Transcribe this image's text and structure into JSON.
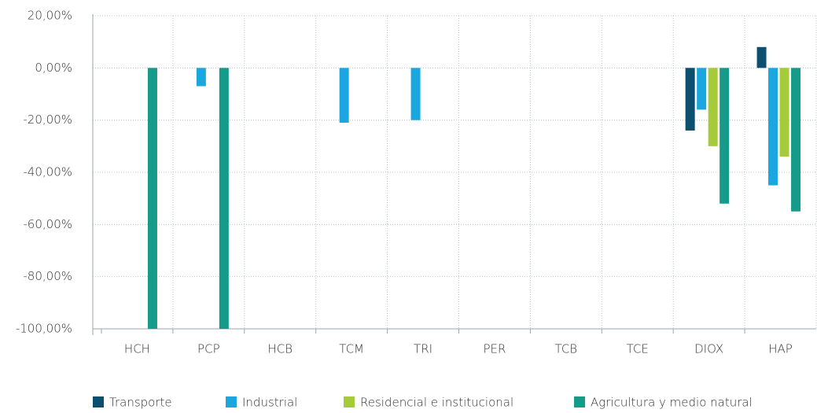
{
  "chart_data": {
    "type": "bar",
    "categories": [
      "HCH",
      "PCP",
      "HCB",
      "TCM",
      "TRI",
      "PER",
      "TCB",
      "TCE",
      "DIOX",
      "HAP"
    ],
    "series": [
      {
        "name": "Transporte",
        "color": "#0d4f6e",
        "values": [
          null,
          null,
          null,
          null,
          null,
          null,
          null,
          null,
          -24,
          8
        ]
      },
      {
        "name": "Industrial",
        "color": "#1aa7e0",
        "values": [
          null,
          -7,
          null,
          -21,
          -20,
          null,
          null,
          null,
          -16,
          -45
        ]
      },
      {
        "name": "Residencial e institucional",
        "color": "#a6cb3a",
        "values": [
          null,
          null,
          null,
          null,
          null,
          null,
          null,
          null,
          -30,
          -34
        ]
      },
      {
        "name": "Agricultura y medio natural",
        "color": "#169b8a",
        "values": [
          -100,
          -100,
          null,
          null,
          null,
          null,
          null,
          null,
          -52,
          -55
        ]
      }
    ],
    "ylim": [
      -100,
      20
    ],
    "yticks": [
      {
        "value": -100,
        "label": "-100,00%"
      },
      {
        "value": -80,
        "label": "-80,00%"
      },
      {
        "value": -60,
        "label": "-60,00%"
      },
      {
        "value": -40,
        "label": "-40,00%"
      },
      {
        "value": -20,
        "label": "-20,00%"
      },
      {
        "value": 0,
        "label": "0,00%"
      },
      {
        "value": 20,
        "label": "20,00%"
      }
    ],
    "grid": true,
    "legend": "bottom"
  }
}
